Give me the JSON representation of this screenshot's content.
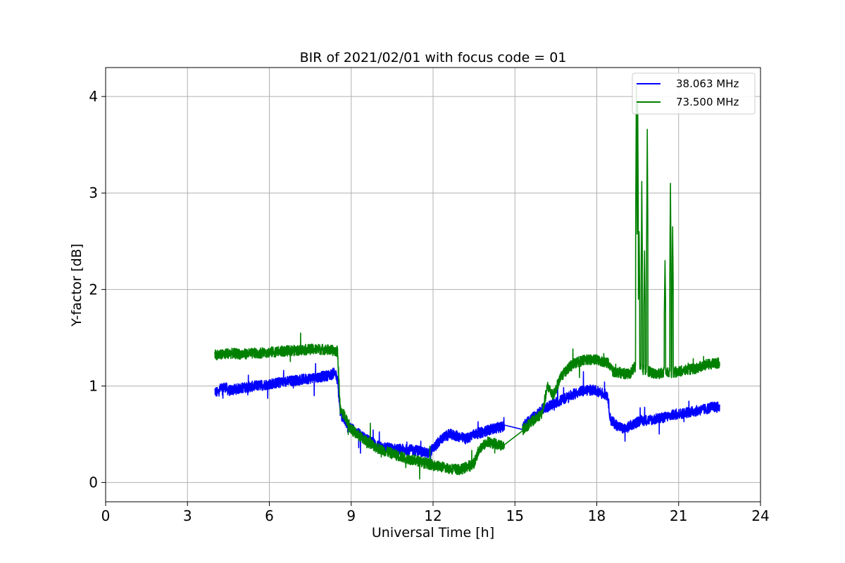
{
  "chart_data": {
    "type": "line",
    "title": "BIR of 2021/02/01 with focus code = 01",
    "xlabel": "Universal Time [h]",
    "ylabel": "Y-factor [dB]",
    "xlim": [
      0,
      24
    ],
    "ylim": [
      -0.2,
      4.3
    ],
    "xticks": [
      0,
      3,
      6,
      9,
      12,
      15,
      18,
      21,
      24
    ],
    "yticks": [
      0,
      1,
      2,
      3,
      4
    ],
    "grid": true,
    "legend_position": "top-right",
    "series": [
      {
        "name": "38.063 MHz",
        "color": "#0000ff",
        "noise": 0.05,
        "points": [
          [
            4.0,
            0.95
          ],
          [
            4.1,
            0.93
          ],
          [
            4.2,
            0.97
          ],
          [
            4.4,
            0.99
          ],
          [
            4.5,
            0.95
          ],
          [
            5.0,
            0.98
          ],
          [
            5.5,
            1.0
          ],
          [
            6.0,
            1.02
          ],
          [
            6.5,
            1.04
          ],
          [
            7.0,
            1.06
          ],
          [
            7.5,
            1.08
          ],
          [
            8.0,
            1.1
          ],
          [
            8.3,
            1.12
          ],
          [
            8.4,
            1.15
          ],
          [
            8.5,
            1.05
          ],
          [
            8.6,
            0.72
          ],
          [
            8.8,
            0.62
          ],
          [
            9.0,
            0.56
          ],
          [
            9.3,
            0.5
          ],
          [
            9.6,
            0.44
          ],
          [
            10.0,
            0.38
          ],
          [
            10.5,
            0.35
          ],
          [
            11.0,
            0.34
          ],
          [
            11.5,
            0.33
          ],
          [
            11.8,
            0.3
          ],
          [
            12.0,
            0.35
          ],
          [
            12.3,
            0.45
          ],
          [
            12.6,
            0.5
          ],
          [
            12.9,
            0.48
          ],
          [
            13.2,
            0.45
          ],
          [
            13.5,
            0.5
          ],
          [
            13.8,
            0.52
          ],
          [
            14.1,
            0.55
          ],
          [
            14.4,
            0.57
          ],
          [
            14.6,
            0.58
          ],
          [
            15.3,
            0.6
          ],
          [
            15.5,
            0.64
          ],
          [
            15.8,
            0.7
          ],
          [
            16.0,
            0.76
          ],
          [
            16.3,
            0.8
          ],
          [
            16.6,
            0.84
          ],
          [
            16.9,
            0.88
          ],
          [
            17.2,
            0.92
          ],
          [
            17.5,
            0.95
          ],
          [
            17.8,
            0.96
          ],
          [
            18.1,
            0.94
          ],
          [
            18.4,
            0.9
          ],
          [
            18.5,
            0.65
          ],
          [
            18.7,
            0.6
          ],
          [
            19.0,
            0.55
          ],
          [
            19.3,
            0.6
          ],
          [
            19.6,
            0.64
          ],
          [
            20.0,
            0.65
          ],
          [
            20.4,
            0.67
          ],
          [
            20.8,
            0.7
          ],
          [
            21.2,
            0.72
          ],
          [
            21.6,
            0.74
          ],
          [
            22.0,
            0.76
          ],
          [
            22.2,
            0.78
          ],
          [
            22.5,
            0.78
          ]
        ]
      },
      {
        "name": "73.500 MHz",
        "color": "#008000",
        "noise": 0.05,
        "points": [
          [
            4.0,
            1.33
          ],
          [
            4.2,
            1.32
          ],
          [
            4.5,
            1.34
          ],
          [
            5.0,
            1.33
          ],
          [
            5.5,
            1.34
          ],
          [
            6.0,
            1.35
          ],
          [
            6.5,
            1.36
          ],
          [
            7.0,
            1.37
          ],
          [
            7.5,
            1.38
          ],
          [
            8.0,
            1.38
          ],
          [
            8.5,
            1.36
          ],
          [
            8.6,
            0.75
          ],
          [
            8.8,
            0.68
          ],
          [
            9.0,
            0.55
          ],
          [
            9.3,
            0.48
          ],
          [
            9.6,
            0.42
          ],
          [
            10.0,
            0.35
          ],
          [
            10.5,
            0.3
          ],
          [
            11.0,
            0.25
          ],
          [
            11.5,
            0.22
          ],
          [
            12.0,
            0.18
          ],
          [
            12.5,
            0.15
          ],
          [
            13.0,
            0.13
          ],
          [
            13.5,
            0.2
          ],
          [
            13.7,
            0.35
          ],
          [
            14.0,
            0.42
          ],
          [
            14.3,
            0.4
          ],
          [
            14.6,
            0.38
          ],
          [
            15.3,
            0.55
          ],
          [
            15.5,
            0.6
          ],
          [
            16.0,
            0.72
          ],
          [
            16.2,
            1.0
          ],
          [
            16.4,
            0.9
          ],
          [
            16.7,
            1.1
          ],
          [
            17.0,
            1.2
          ],
          [
            17.3,
            1.25
          ],
          [
            17.6,
            1.27
          ],
          [
            18.0,
            1.27
          ],
          [
            18.4,
            1.24
          ],
          [
            18.6,
            1.15
          ],
          [
            19.0,
            1.13
          ],
          [
            19.2,
            1.12
          ],
          [
            19.4,
            1.2
          ],
          [
            19.6,
            1.18
          ],
          [
            19.9,
            1.15
          ],
          [
            20.2,
            1.12
          ],
          [
            20.5,
            1.14
          ],
          [
            20.8,
            1.14
          ],
          [
            21.2,
            1.16
          ],
          [
            21.6,
            1.18
          ],
          [
            22.0,
            1.22
          ],
          [
            22.5,
            1.24
          ]
        ],
        "spikes": [
          [
            19.45,
            4.12
          ],
          [
            19.5,
            3.95
          ],
          [
            19.55,
            2.6
          ],
          [
            19.65,
            3.12
          ],
          [
            19.75,
            2.4
          ],
          [
            19.85,
            3.66
          ],
          [
            20.5,
            2.3
          ],
          [
            20.7,
            3.1
          ],
          [
            20.78,
            2.65
          ]
        ]
      }
    ]
  }
}
